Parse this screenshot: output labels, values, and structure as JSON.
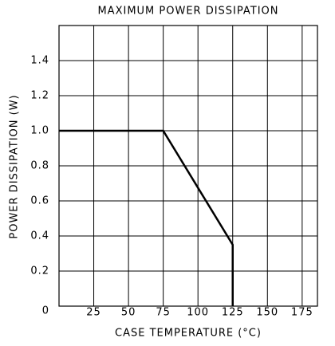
{
  "chart_data": {
    "type": "line",
    "title": "MAXIMUM POWER DISSIPATION",
    "x_label": "CASE TEMPERATURE (°C)",
    "y_label": "POWER DISSIPATION (W)",
    "x": [
      0,
      75,
      125,
      125
    ],
    "series": [
      {
        "name": null,
        "color": "#000000",
        "values": [
          1.0,
          1.0,
          0.35,
          0
        ]
      }
    ],
    "xlim": [
      0,
      186
    ],
    "xticks": [
      25,
      50,
      75,
      100,
      125,
      150,
      175
    ],
    "ylim": [
      0,
      1.6
    ],
    "yticks": [
      0,
      0.2,
      0.4,
      0.6,
      0.8,
      {
        "value": 1.0,
        "label": "1.0"
      },
      1.2,
      1.4
    ],
    "grid": true
  }
}
